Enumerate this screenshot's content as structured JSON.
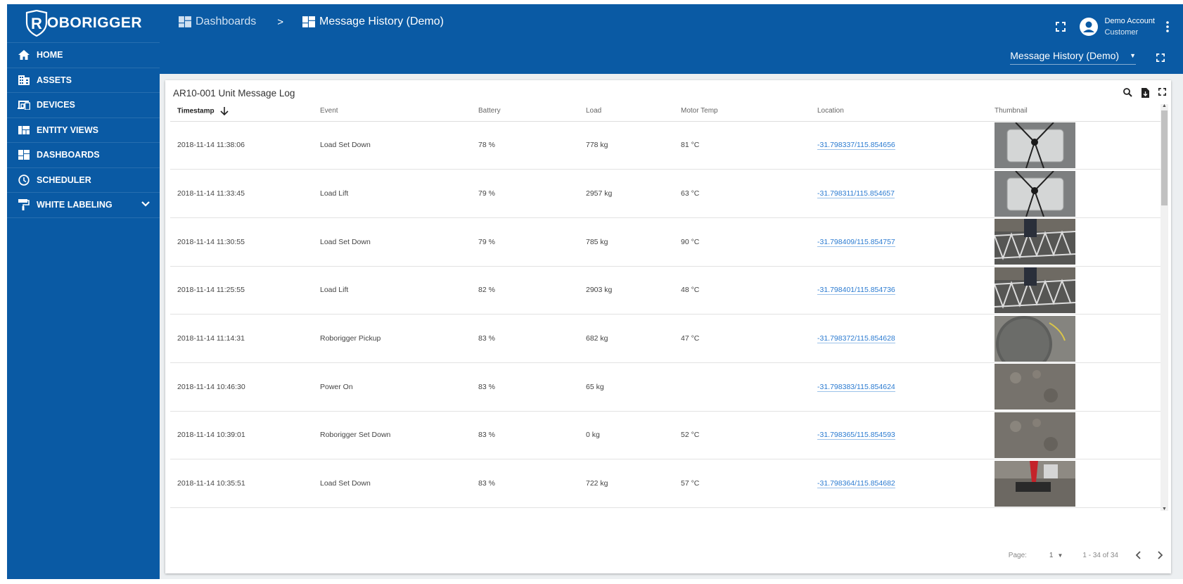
{
  "brand": {
    "logo_letter": "R",
    "logo_text": "OBORIGGER"
  },
  "sidebar": {
    "items": [
      {
        "label": "HOME",
        "icon": "home-icon"
      },
      {
        "label": "ASSETS",
        "icon": "building-icon"
      },
      {
        "label": "DEVICES",
        "icon": "devices-icon"
      },
      {
        "label": "ENTITY VIEWS",
        "icon": "view-quilt-icon"
      },
      {
        "label": "DASHBOARDS",
        "icon": "dashboard-icon"
      },
      {
        "label": "SCHEDULER",
        "icon": "clock-icon"
      },
      {
        "label": "WHITE LABELING",
        "icon": "paint-roller-icon"
      }
    ]
  },
  "header": {
    "breadcrumb": [
      "Dashboards",
      ">",
      "Message History (Demo)"
    ],
    "account": {
      "name": "Demo Account",
      "role": "Customer"
    },
    "dashboard_select": "Message History (Demo)"
  },
  "widget": {
    "title": "AR10-001 Unit Message Log",
    "columns": [
      "Timestamp",
      "Event",
      "Battery",
      "Load",
      "Motor Temp",
      "Location",
      "Thumbnail"
    ],
    "rows": [
      {
        "timestamp": "2018-11-14 11:38:06",
        "event": "Load Set Down",
        "battery": "78 %",
        "load": "778 kg",
        "motor_temp": "81 °C",
        "location": "-31.798337/115.854656",
        "thumb": "crate-top"
      },
      {
        "timestamp": "2018-11-14 11:33:45",
        "event": "Load Lift",
        "battery": "79 %",
        "load": "2957 kg",
        "motor_temp": "63 °C",
        "location": "-31.798311/115.854657",
        "thumb": "crate-top"
      },
      {
        "timestamp": "2018-11-14 11:30:55",
        "event": "Load Set Down",
        "battery": "79 %",
        "load": "785 kg",
        "motor_temp": "90 °C",
        "location": "-31.798409/115.854757",
        "thumb": "truss"
      },
      {
        "timestamp": "2018-11-14 11:25:55",
        "event": "Load Lift",
        "battery": "82 %",
        "load": "2903 kg",
        "motor_temp": "48 °C",
        "location": "-31.798401/115.854736",
        "thumb": "truss"
      },
      {
        "timestamp": "2018-11-14 11:14:31",
        "event": "Roborigger Pickup",
        "battery": "83 %",
        "load": "682 kg",
        "motor_temp": "47 °C",
        "location": "-31.798372/115.854628",
        "thumb": "ground-ring"
      },
      {
        "timestamp": "2018-11-14 10:46:30",
        "event": "Power On",
        "battery": "83 %",
        "load": "65 kg",
        "motor_temp": "",
        "location": "-31.798383/115.854624",
        "thumb": "ground"
      },
      {
        "timestamp": "2018-11-14 10:39:01",
        "event": "Roborigger Set Down",
        "battery": "83 %",
        "load": "0 kg",
        "motor_temp": "52 °C",
        "location": "-31.798365/115.854593",
        "thumb": "ground"
      },
      {
        "timestamp": "2018-11-14 10:35:51",
        "event": "Load Set Down",
        "battery": "83 %",
        "load": "722 kg",
        "motor_temp": "57 °C",
        "location": "-31.798364/115.854682",
        "thumb": "crane-red"
      }
    ],
    "paginator": {
      "page_label": "Page:",
      "page": "1",
      "range": "1 - 34 of 34"
    }
  },
  "colors": {
    "primary": "#0a5aa4",
    "link": "#2b7bd1"
  }
}
